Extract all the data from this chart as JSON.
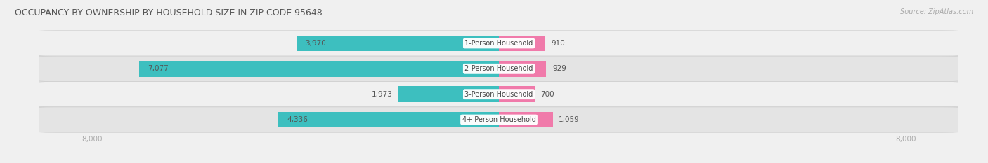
{
  "title": "OCCUPANCY BY OWNERSHIP BY HOUSEHOLD SIZE IN ZIP CODE 95648",
  "source": "Source: ZipAtlas.com",
  "categories": [
    "1-Person Household",
    "2-Person Household",
    "3-Person Household",
    "4+ Person Household"
  ],
  "owner_values": [
    3970,
    7077,
    1973,
    4336
  ],
  "renter_values": [
    910,
    929,
    700,
    1059
  ],
  "owner_color": "#3dbfbf",
  "renter_color": "#f07aaa",
  "renter_color_light": "#f9b8ce",
  "row_bg_color_light": "#f0f0f0",
  "row_bg_color_dark": "#e4e4e4",
  "max_value": 8000,
  "x_tick_labels": [
    "8,000",
    "8,000"
  ],
  "title_fontsize": 9,
  "source_fontsize": 7,
  "tick_fontsize": 7.5,
  "bar_label_fontsize": 7.5,
  "category_label_fontsize": 7,
  "legend_fontsize": 7.5,
  "owner_label_color_white": "#ffffff",
  "owner_label_color_dark": "#555555"
}
